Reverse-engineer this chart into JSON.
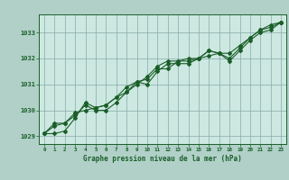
{
  "title": "Graphe pression niveau de la mer (hPa)",
  "background_color": "#b0d0c8",
  "plot_bg_color": "#cce8e0",
  "grid_color": "#88aaaa",
  "line_color": "#1a5e28",
  "xlim": [
    -0.5,
    23.5
  ],
  "ylim": [
    1028.7,
    1033.7
  ],
  "yticks": [
    1029,
    1030,
    1031,
    1032,
    1033
  ],
  "xticks": [
    0,
    1,
    2,
    3,
    4,
    5,
    6,
    7,
    8,
    9,
    10,
    11,
    12,
    13,
    14,
    15,
    16,
    17,
    18,
    19,
    20,
    21,
    22,
    23
  ],
  "series1": [
    1029.1,
    1029.5,
    1029.5,
    1029.8,
    1030.2,
    1030.0,
    1030.0,
    1030.3,
    1030.7,
    1031.1,
    1031.0,
    1031.5,
    1031.8,
    1031.8,
    1031.8,
    1032.0,
    1032.1,
    1032.2,
    1031.9,
    1032.3,
    1032.7,
    1033.0,
    1033.1,
    1033.4
  ],
  "series2": [
    1029.1,
    1029.4,
    1029.5,
    1029.9,
    1030.0,
    1030.1,
    1030.2,
    1030.5,
    1030.7,
    1031.0,
    1031.3,
    1031.7,
    1031.9,
    1031.9,
    1032.0,
    1032.0,
    1032.3,
    1032.2,
    1032.2,
    1032.5,
    1032.8,
    1033.1,
    1033.3,
    1033.4
  ],
  "series3": [
    1029.1,
    1029.1,
    1029.2,
    1029.7,
    1030.3,
    1030.1,
    1030.2,
    1030.5,
    1030.9,
    1031.1,
    1031.2,
    1031.6,
    1031.6,
    1031.9,
    1031.9,
    1032.0,
    1032.3,
    1032.2,
    1032.0,
    1032.4,
    1032.8,
    1033.1,
    1033.2,
    1033.4
  ]
}
